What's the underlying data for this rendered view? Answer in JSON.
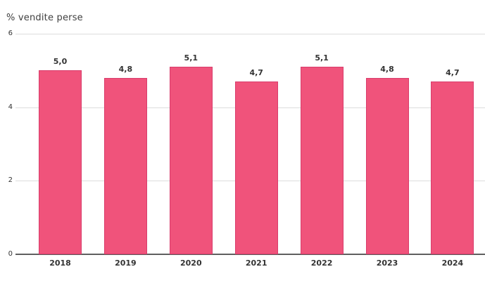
{
  "chart_data": {
    "type": "bar",
    "title": "% vendite perse",
    "categories": [
      "2018",
      "2019",
      "2020",
      "2021",
      "2022",
      "2023",
      "2024"
    ],
    "values": [
      5.0,
      4.8,
      5.1,
      4.7,
      5.1,
      4.8,
      4.7
    ],
    "value_labels": [
      "5,0",
      "4,8",
      "5,1",
      "4,7",
      "5,1",
      "4,8",
      "4,7"
    ],
    "xlabel": "",
    "ylabel": "",
    "ylim": [
      0,
      6
    ],
    "yticks": [
      0,
      2,
      4,
      6
    ],
    "grid": true,
    "legend": false,
    "colors": {
      "bar_fill": "#f0537b",
      "bar_border": "#d93d6c",
      "gridline": "#dddddd",
      "axis_line": "#5f5f5f",
      "text": "#333333",
      "title_text": "#3f3f3f",
      "background": "#ffffff"
    }
  }
}
